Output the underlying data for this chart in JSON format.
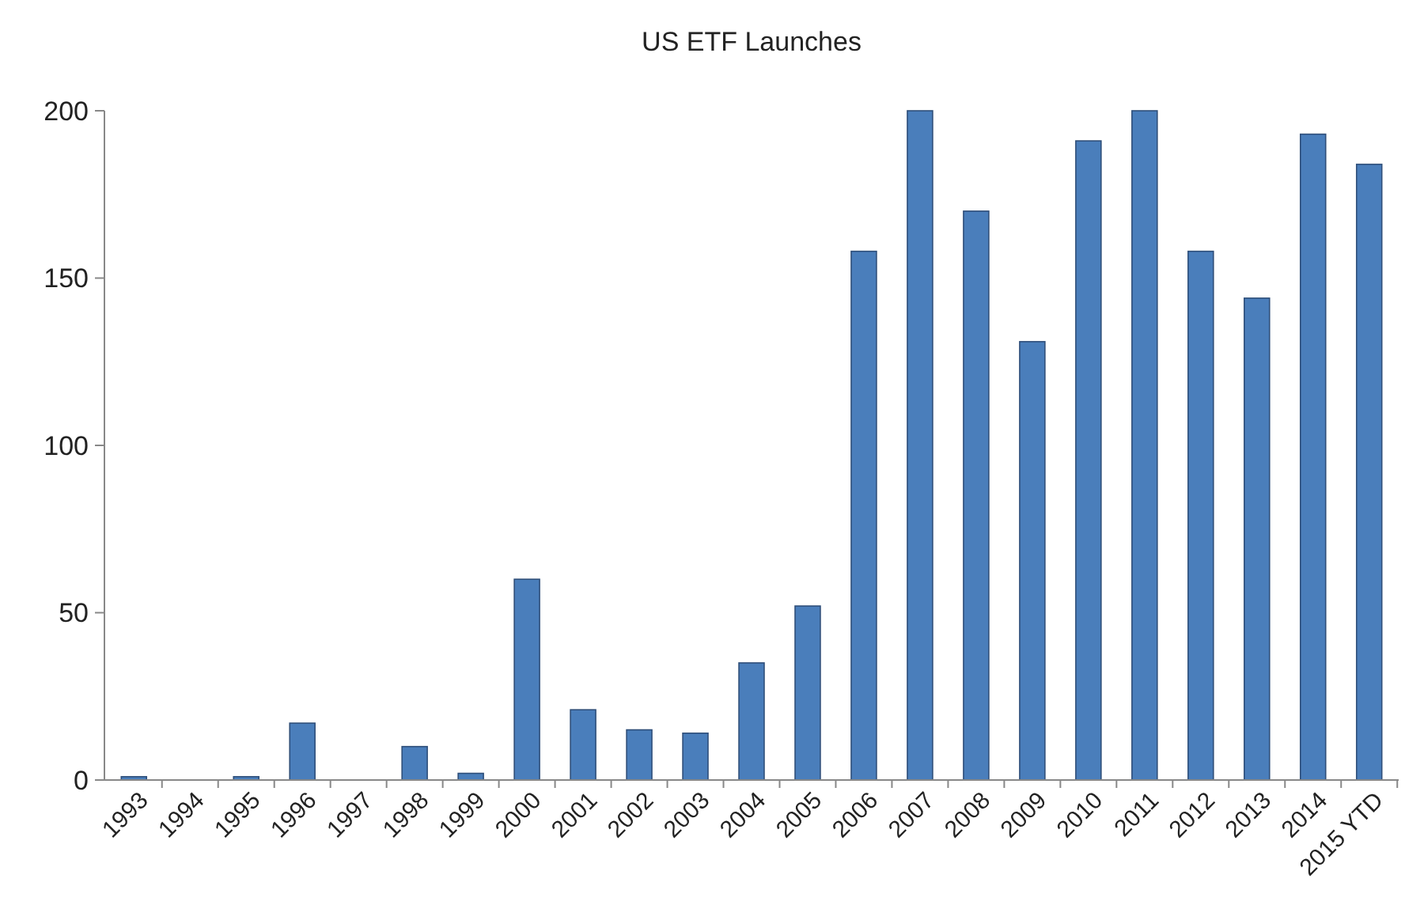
{
  "chart_data": {
    "type": "bar",
    "title": "US ETF Launches",
    "categories": [
      "1993",
      "1994",
      "1995",
      "1996",
      "1997",
      "1998",
      "1999",
      "2000",
      "2001",
      "2002",
      "2003",
      "2004",
      "2005",
      "2006",
      "2007",
      "2008",
      "2009",
      "2010",
      "2011",
      "2012",
      "2013",
      "2014",
      "2015 YTD"
    ],
    "values": [
      1,
      0,
      1,
      17,
      0,
      10,
      2,
      60,
      21,
      15,
      14,
      35,
      52,
      158,
      200,
      170,
      131,
      191,
      200,
      158,
      144,
      193,
      184
    ],
    "color": "#4a7ebb",
    "ylim": [
      0,
      200
    ],
    "yticks": [
      0,
      50,
      100,
      150,
      200
    ],
    "grid": false
  }
}
